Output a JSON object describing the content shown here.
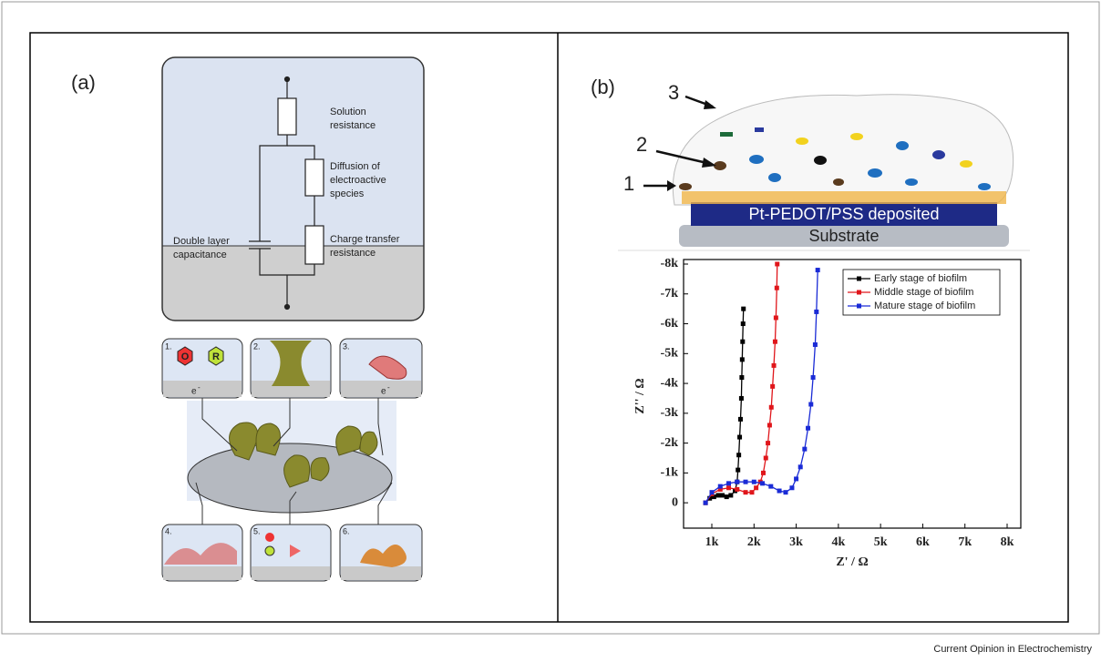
{
  "panel_a": {
    "label": "(a)",
    "circuit": {
      "solution_resistance": [
        "Solution",
        "resistance"
      ],
      "diffusion": [
        "Diffusion of",
        "electroactive",
        "species"
      ],
      "charge_transfer": [
        "Charge transfer",
        "resistance"
      ],
      "double_layer": [
        "Double layer",
        "capacitance"
      ]
    },
    "insets": {
      "numbers": [
        "1.",
        "2.",
        "3.",
        "4.",
        "5.",
        "6."
      ],
      "oxidized": "O",
      "reduced": "R",
      "electron": "e",
      "electron_charge": "-"
    }
  },
  "panel_b": {
    "label": "(b)",
    "illustration": {
      "markers": [
        "3",
        "2",
        "1"
      ],
      "layer": "Pt-PEDOT/PSS deposited",
      "substrate": "Substrate"
    }
  },
  "chart_data": {
    "type": "line",
    "xlabel": "Z' / Ω",
    "ylabel": "Z'' / Ω",
    "xlim": [
      330,
      8000
    ],
    "ylim": [
      850,
      -8000
    ],
    "xticks": [
      {
        "value": 1000,
        "label": "1k"
      },
      {
        "value": 2000,
        "label": "2k"
      },
      {
        "value": 3000,
        "label": "3k"
      },
      {
        "value": 4000,
        "label": "4k"
      },
      {
        "value": 5000,
        "label": "5k"
      },
      {
        "value": 6000,
        "label": "6k"
      },
      {
        "value": 7000,
        "label": "7k"
      },
      {
        "value": 8000,
        "label": "8k"
      }
    ],
    "yticks": [
      0,
      {
        "value": -1000,
        "label": "-1k"
      },
      {
        "value": -2000,
        "label": "-2k"
      },
      {
        "value": -3000,
        "label": "-3k"
      },
      {
        "value": -4000,
        "label": "-4k"
      },
      {
        "value": -5000,
        "label": "-5k"
      },
      {
        "value": -6000,
        "label": "-6k"
      },
      {
        "value": -7000,
        "label": "-7k"
      },
      {
        "value": -8000,
        "label": "-8k"
      }
    ],
    "legend": "upper right",
    "series": [
      {
        "name": "Early stage of biofilm",
        "color": "#000000",
        "x": [
          850,
          950,
          1050,
          1150,
          1250,
          1350,
          1450,
          1550,
          1600,
          1620,
          1640,
          1660,
          1680,
          1700,
          1710,
          1720,
          1730,
          1740,
          1750
        ],
        "values": [
          0,
          -150,
          -200,
          -250,
          -250,
          -200,
          -250,
          -400,
          -700,
          -1100,
          -1600,
          -2200,
          -2800,
          -3500,
          -4200,
          -4800,
          -5400,
          -6000,
          -6500
        ]
      },
      {
        "name": "Middle stage of biofilm",
        "color": "#e0161b",
        "x": [
          850,
          1000,
          1200,
          1400,
          1600,
          1800,
          1950,
          2050,
          2150,
          2220,
          2280,
          2330,
          2370,
          2410,
          2440,
          2470,
          2500,
          2520,
          2540,
          2550
        ],
        "values": [
          0,
          -300,
          -450,
          -500,
          -450,
          -350,
          -350,
          -500,
          -700,
          -1000,
          -1500,
          -2000,
          -2600,
          -3200,
          -3900,
          -4600,
          -5400,
          -6200,
          -7200,
          -8000
        ]
      },
      {
        "name": "Mature stage of biofilm",
        "color": "#1a2bd6",
        "x": [
          850,
          1000,
          1200,
          1400,
          1600,
          1800,
          2000,
          2200,
          2400,
          2600,
          2750,
          2900,
          3000,
          3100,
          3200,
          3280,
          3350,
          3400,
          3450,
          3480,
          3510
        ],
        "values": [
          0,
          -350,
          -550,
          -650,
          -700,
          -700,
          -700,
          -650,
          -550,
          -400,
          -350,
          -500,
          -800,
          -1200,
          -1800,
          -2500,
          -3300,
          -4200,
          -5300,
          -6400,
          -7800
        ]
      }
    ]
  },
  "footer": "Current Opinion in Electrochemistry"
}
